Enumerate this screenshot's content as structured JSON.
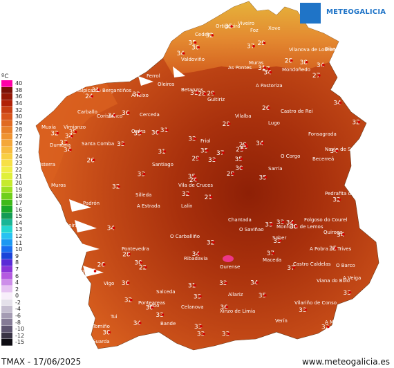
{
  "brand": {
    "name": "METEOGALICIA",
    "logo_icon": "galicia-shield-icon",
    "color": "#1f74c7"
  },
  "legend": {
    "unit": "ºC",
    "entries": [
      {
        "v": "40",
        "c": "#ff00a6"
      },
      {
        "v": "38",
        "c": "#7a1006"
      },
      {
        "v": "36",
        "c": "#951705"
      },
      {
        "v": "34",
        "c": "#b12107"
      },
      {
        "v": "32",
        "c": "#c83e12"
      },
      {
        "v": "30",
        "c": "#d8541b"
      },
      {
        "v": "29",
        "c": "#e06a22"
      },
      {
        "v": "28",
        "c": "#e8802a"
      },
      {
        "v": "27",
        "c": "#ef9331"
      },
      {
        "v": "26",
        "c": "#f4a73a"
      },
      {
        "v": "25",
        "c": "#f7bb3f"
      },
      {
        "v": "24",
        "c": "#f8cf42"
      },
      {
        "v": "23",
        "c": "#f7e046"
      },
      {
        "v": "22",
        "c": "#f0ee47"
      },
      {
        "v": "21",
        "c": "#e0f03a"
      },
      {
        "v": "20",
        "c": "#c6ea2e"
      },
      {
        "v": "19",
        "c": "#9ee023"
      },
      {
        "v": "18",
        "c": "#6fcf1b"
      },
      {
        "v": "17",
        "c": "#3fba1a"
      },
      {
        "v": "16",
        "c": "#1aa82a"
      },
      {
        "v": "15",
        "c": "#139b55"
      },
      {
        "v": "14",
        "c": "#19b596"
      },
      {
        "v": "13",
        "c": "#24d6d1"
      },
      {
        "v": "12",
        "c": "#27c2f2"
      },
      {
        "v": "11",
        "c": "#1d98f2"
      },
      {
        "v": "10",
        "c": "#1a6ef0"
      },
      {
        "v": "9",
        "c": "#1b43d9"
      },
      {
        "v": "8",
        "c": "#5a2bd6"
      },
      {
        "v": "7",
        "c": "#8a35d8"
      },
      {
        "v": "6",
        "c": "#b45be0"
      },
      {
        "v": "4",
        "c": "#cd8ee9"
      },
      {
        "v": "2",
        "c": "#e6c3f2"
      },
      {
        "v": "0",
        "c": "#f7eefa"
      },
      {
        "v": "-2",
        "c": "#e4e1ea"
      },
      {
        "v": "-4",
        "c": "#c4bdcf"
      },
      {
        "v": "-6",
        "c": "#a49bb3"
      },
      {
        "v": "-8",
        "c": "#857b96"
      },
      {
        "v": "-10",
        "c": "#5e5570"
      },
      {
        "v": "-12",
        "c": "#393345"
      },
      {
        "v": "-15",
        "c": "#0d0b12"
      }
    ]
  },
  "footer": {
    "title": "TMAX - 17/06/2025",
    "site": "www.meteogalicia.es"
  },
  "places": [
    "Ribadeo",
    "Vilanova de Lourenzá",
    "Mondoñedo",
    "Foz",
    "Xove",
    "Viveiro",
    "Ortigueira",
    "Cedeira",
    "Valdoviño",
    "Ferrol",
    "As Pontes",
    "Muras",
    "Malpica de Bergantiños",
    "Carballo",
    "Coristanco",
    "Cerceda",
    "Arteixo",
    "Oleiros",
    "Betanzos",
    "Guitiriz",
    "Vilalba",
    "Castro de Rei",
    "A Pastoriza",
    "Lugo",
    "Friol",
    "Ordes",
    "Santiago",
    "Santa Comba",
    "Muxía",
    "Vimianzo",
    "Dumbría",
    "Fisterra",
    "Muros",
    "Padrón",
    "Ribeira",
    "A Estrada",
    "Lalín",
    "Vila de Cruces",
    "Silleda",
    "Chantada",
    "Monforte de Lemos",
    "Sarria",
    "O Corgo",
    "Becerreá",
    "Pedrafita do Cebreiro",
    "Navia de Suarna",
    "Fonsagrada",
    "Pontevedra",
    "Cangas",
    "Vigo",
    "Ponteareas",
    "Tui",
    "A Guarda",
    "Tomiño",
    "Salceda",
    "Ourense",
    "O Carballiño",
    "Ribadavia",
    "Maceda",
    "Castro Caldelas",
    "A Pobra de Trives",
    "O Barco",
    "Viana do Bolo",
    "Xinzo de Limia",
    "Verín",
    "Allariz",
    "Celanova",
    "Bande",
    "Lobios",
    "A Mezquita",
    "Vilariño de Conso",
    "Sober",
    "O Saviñao",
    "Quiroga",
    "Folgoso do Courel",
    "A Veiga",
    "Arbo"
  ],
  "stations": [
    "21",
    "24",
    "24",
    "23",
    "22",
    "29",
    "29",
    "27",
    "29",
    "26",
    "32",
    "26",
    "30",
    "31",
    "29",
    "26",
    "31",
    "32",
    "28",
    "29",
    "30",
    "31",
    "30",
    "34",
    "33",
    "32",
    "35",
    "31",
    "29",
    "32",
    "28",
    "30",
    "32",
    "33",
    "34",
    "35",
    "36",
    "33",
    "37",
    "34",
    "32",
    "35",
    "33",
    "30",
    "28",
    "34",
    "33",
    "35",
    "36",
    "33",
    "34",
    "32",
    "33",
    "35",
    "36",
    "38",
    "37",
    "34",
    "35",
    "34",
    "33",
    "33",
    "35",
    "34",
    "33",
    "36",
    "37",
    "35",
    "34",
    "33",
    "34",
    "32",
    "33",
    "33",
    "34",
    "35",
    "34",
    "37",
    "33",
    "35",
    "34",
    "33",
    "31",
    "34",
    "32",
    "33",
    "34",
    "28",
    "30",
    "29",
    "27",
    "31",
    "32"
  ]
}
